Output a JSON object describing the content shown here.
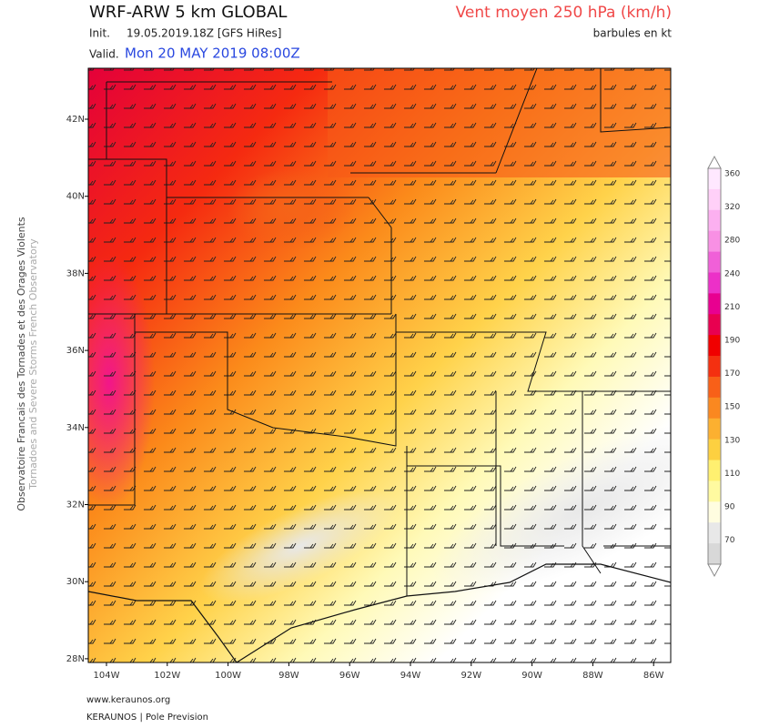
{
  "header": {
    "title": "WRF-ARW 5 km GLOBAL",
    "init_label": "Init.",
    "init_value": "19.05.2019.18Z [GFS HiRes]",
    "valid_label": "Valid.",
    "valid_value": "Mon 20 MAY 2019 08:00Z",
    "product": "Vent moyen 250 hPa (km/h)",
    "barbs_note": "barbules en kt"
  },
  "side": {
    "line1": "Observatoire Francais des Tornades et des Orages Violents",
    "line2": "Tornadoes and Severe Storms French Observatory"
  },
  "map": {
    "lat_labels": [
      "42N",
      "40N",
      "38N",
      "36N",
      "34N",
      "32N",
      "30N",
      "28N"
    ],
    "lon_labels": [
      "104W",
      "102W",
      "100W",
      "98W",
      "96W",
      "94W",
      "92W",
      "90W",
      "88W",
      "86W"
    ]
  },
  "colorbar": {
    "labels": [
      "360",
      "320",
      "280",
      "240",
      "210",
      "190",
      "170",
      "150",
      "130",
      "110",
      "90",
      "70"
    ]
  },
  "footer": {
    "site": "www.keraunos.org",
    "credit": "KERAUNOS | Pole Prevision"
  }
}
